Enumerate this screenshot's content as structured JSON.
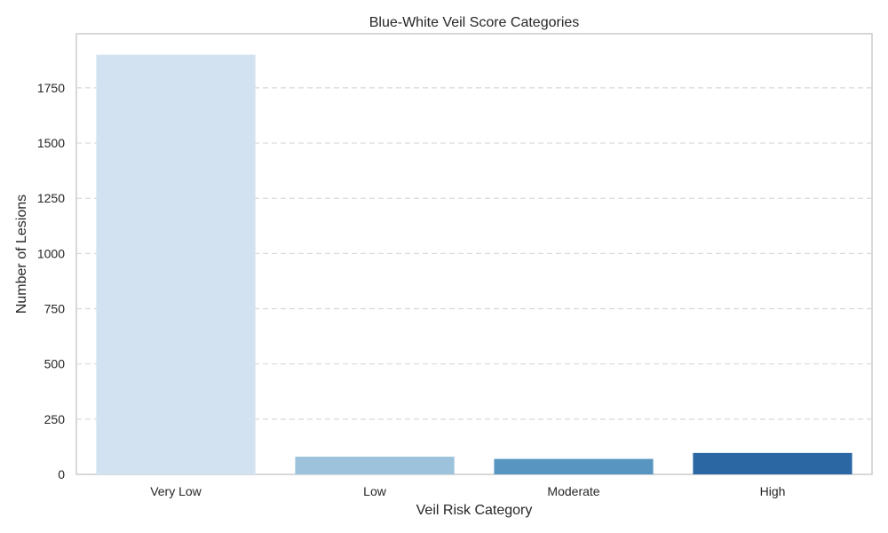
{
  "chart_data": {
    "type": "bar",
    "title": "Blue-White Veil Score Categories",
    "xlabel": "Veil Risk Category",
    "ylabel": "Number of Lesions",
    "categories": [
      "Very Low",
      "Low",
      "Moderate",
      "High"
    ],
    "values": [
      1900,
      80,
      70,
      97
    ],
    "colors": [
      "#d2e2f0",
      "#9cc3db",
      "#5895c1",
      "#2a67a3"
    ],
    "ylim": [
      0,
      1995
    ],
    "yticks": [
      0,
      250,
      500,
      750,
      1000,
      1250,
      1500,
      1750
    ],
    "grid": "y-dashed"
  }
}
